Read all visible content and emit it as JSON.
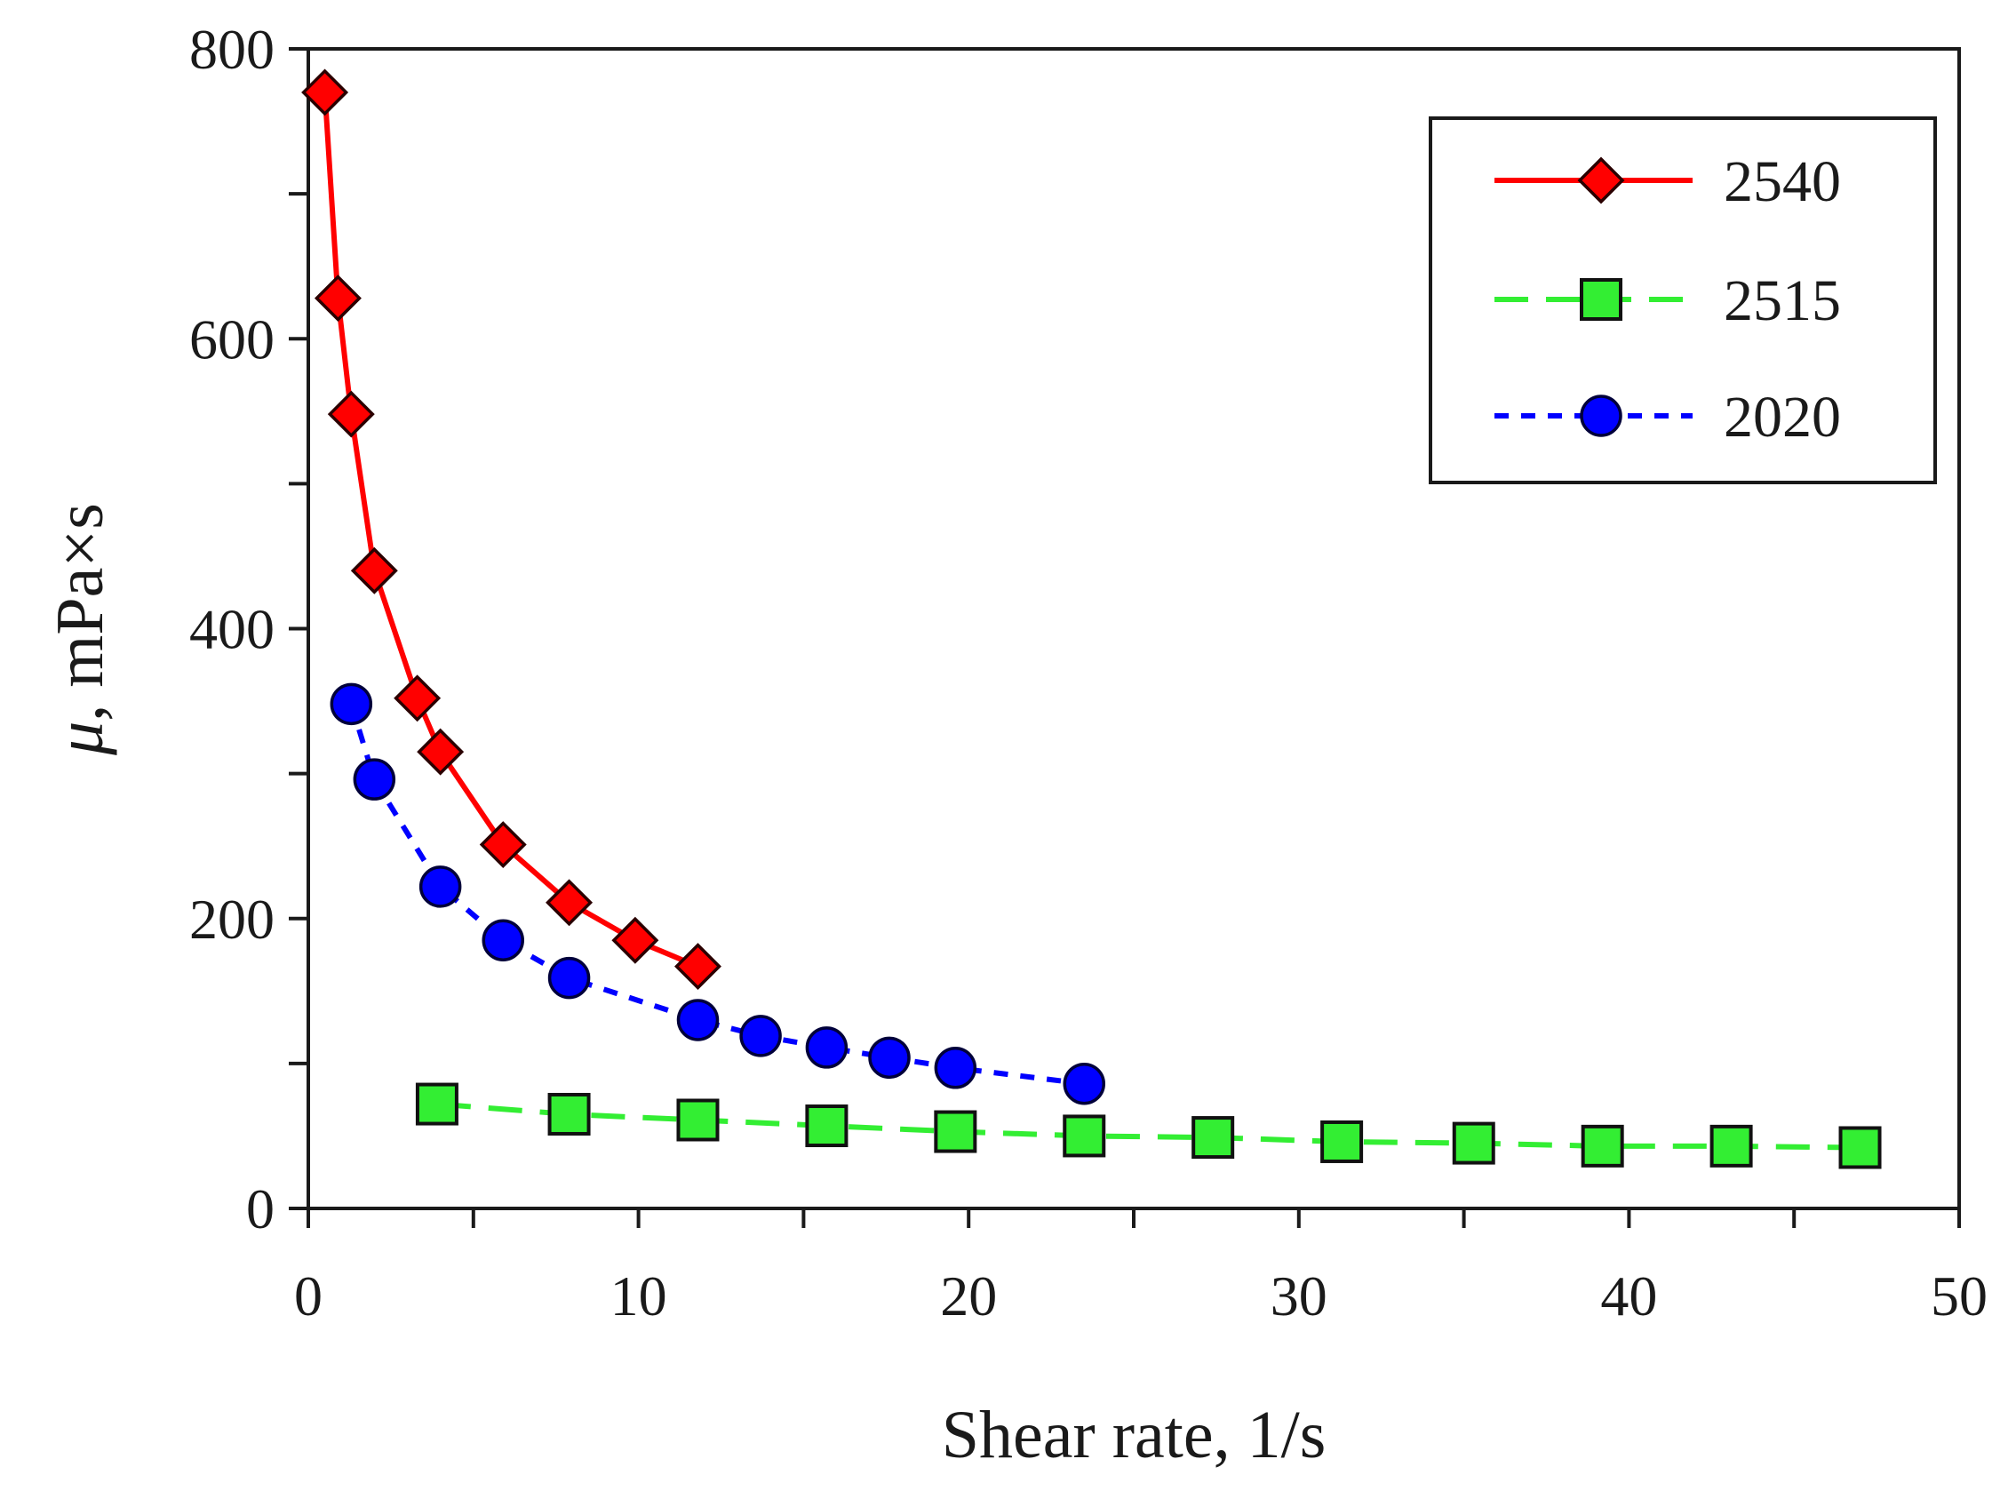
{
  "chart_data": {
    "type": "line",
    "title": "",
    "xlabel": "Shear rate, 1/s",
    "ylabel_symbol": "μ",
    "ylabel_rest": ", mPa×s",
    "xlim": [
      0,
      50
    ],
    "ylim": [
      0,
      800
    ],
    "x_ticks": [
      0,
      10,
      20,
      30,
      40,
      50
    ],
    "x_minor_step": 5,
    "y_ticks": [
      0,
      200,
      400,
      600,
      800
    ],
    "y_minor_step": 100,
    "grid": false,
    "legend_position": "top-right",
    "series": [
      {
        "name": "2540",
        "color": "#ff0000",
        "marker": "diamond",
        "line_style": "solid",
        "x": [
          0.5,
          0.9,
          1.3,
          2.0,
          3.3,
          4.0,
          5.9,
          7.9,
          9.9,
          11.8
        ],
        "y": [
          770,
          628,
          548,
          440,
          352,
          315,
          251,
          211,
          185,
          167
        ]
      },
      {
        "name": "2515",
        "color": "#33ee33",
        "marker": "square",
        "line_style": "dashed-long",
        "x": [
          3.9,
          7.9,
          11.8,
          15.7,
          19.6,
          23.5,
          27.4,
          31.3,
          35.3,
          39.2,
          43.1,
          47.0
        ],
        "y": [
          72,
          65,
          61,
          57,
          53,
          50,
          49,
          46,
          45,
          43,
          43,
          42
        ]
      },
      {
        "name": "2020",
        "color": "#0000ff",
        "marker": "circle",
        "line_style": "dashed-short",
        "x": [
          1.3,
          2.0,
          4.0,
          5.9,
          7.9,
          11.8,
          13.7,
          15.7,
          17.6,
          19.6,
          23.5
        ],
        "y": [
          348,
          296,
          222,
          185,
          159,
          130,
          119,
          111,
          104,
          97,
          86
        ]
      }
    ]
  }
}
